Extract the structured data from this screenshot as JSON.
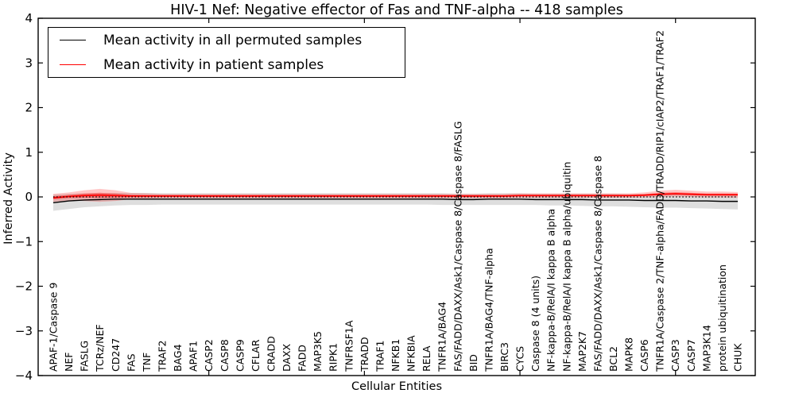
{
  "figure": {
    "title": "HIV-1 Nef: Negative effector of Fas and TNF-alpha -- 418 samples",
    "background_color": "#ffffff"
  },
  "legend": {
    "items": [
      {
        "label": "Mean activity in all permuted samples",
        "color": "#000000"
      },
      {
        "label": "Mean activity in patient samples",
        "color": "#ff0000"
      }
    ]
  },
  "axes": {
    "xlabel": "Cellular Entities",
    "ylabel": "Inferred Activity",
    "ytick_labels": [
      "4",
      "3",
      "2",
      "1",
      "0",
      "−1",
      "−2",
      "−3",
      "−4"
    ]
  },
  "chart_data": {
    "type": "line",
    "title": "HIV-1 Nef: Negative effector of Fas and TNF-alpha -- 418 samples",
    "xlabel": "Cellular Entities",
    "ylabel": "Inferred Activity",
    "ylim": [
      -4,
      4
    ],
    "yticks": [
      4,
      3,
      2,
      1,
      0,
      -1,
      -2,
      -3,
      -4
    ],
    "xtick_indices": [
      10,
      20,
      30,
      40
    ],
    "grid": false,
    "legend_position": "upper left",
    "zero_line": 0,
    "categories": [
      "APAF-1/Caspase 9",
      "NEF",
      "FASLG",
      "TCRz/NEF",
      "CD247",
      "FAS",
      "TNF",
      "TRAF2",
      "BAG4",
      "APAF1",
      "CASP2",
      "CASP8",
      "CASP9",
      "CFLAR",
      "CRADD",
      "DAXX",
      "FADD",
      "MAP3K5",
      "RIPK1",
      "TNFRSF1A",
      "TRADD",
      "TRAF1",
      "NFKB1",
      "NFKBIA",
      "RELA",
      "TNFR1A/BAG4",
      "FAS/FADD/DAXX/Ask1/Caspase 8/Caspase 8/FASLG",
      "BID",
      "TNFR1A/BAG4/TNF-alpha",
      "BIRC3",
      "CYCS",
      "Caspase 8 (4 units)",
      "NF-kappa-B/RelA/I kappa B alpha",
      "NF-kappa-B/RelA/I kappa B alpha/ubiquitin",
      "MAP2K7",
      "FAS/FADD/DAXX/Ask1/Caspase 8/Caspase 8",
      "BCL2",
      "MAPK8",
      "CASP6",
      "TNFR1A/Caspase 2/TNF-alpha/FADD/TRADD/RIP1/cIAP2/TRAF1/TRAF2",
      "CASP3",
      "CASP7",
      "MAP3K14",
      "protein ubiquitination",
      "CHUK"
    ],
    "series": [
      {
        "name": "Mean activity in all permuted samples",
        "color": "#000000",
        "band_color": "#000000",
        "band_opacity": 0.13,
        "values": [
          -0.13,
          -0.09,
          -0.07,
          -0.06,
          -0.05,
          -0.05,
          -0.05,
          -0.05,
          -0.05,
          -0.05,
          -0.05,
          -0.05,
          -0.05,
          -0.05,
          -0.05,
          -0.05,
          -0.05,
          -0.05,
          -0.05,
          -0.05,
          -0.05,
          -0.05,
          -0.05,
          -0.05,
          -0.05,
          -0.05,
          -0.06,
          -0.06,
          -0.05,
          -0.05,
          -0.05,
          -0.06,
          -0.06,
          -0.06,
          -0.06,
          -0.07,
          -0.07,
          -0.07,
          -0.08,
          -0.08,
          -0.08,
          -0.09,
          -0.09,
          -0.1,
          -0.1
        ],
        "band_lower": [
          -0.31,
          -0.27,
          -0.23,
          -0.21,
          -0.19,
          -0.18,
          -0.18,
          -0.17,
          -0.17,
          -0.17,
          -0.17,
          -0.17,
          -0.17,
          -0.17,
          -0.17,
          -0.17,
          -0.17,
          -0.17,
          -0.17,
          -0.17,
          -0.17,
          -0.17,
          -0.17,
          -0.17,
          -0.17,
          -0.18,
          -0.18,
          -0.18,
          -0.18,
          -0.18,
          -0.18,
          -0.18,
          -0.19,
          -0.19,
          -0.2,
          -0.21,
          -0.21,
          -0.22,
          -0.23,
          -0.24,
          -0.24,
          -0.25,
          -0.26,
          -0.27,
          -0.28
        ],
        "band_upper": [
          0.05,
          0.07,
          0.08,
          0.08,
          0.09,
          0.09,
          0.09,
          0.08,
          0.08,
          0.08,
          0.08,
          0.08,
          0.08,
          0.08,
          0.08,
          0.08,
          0.08,
          0.08,
          0.08,
          0.08,
          0.08,
          0.08,
          0.08,
          0.08,
          0.08,
          0.08,
          0.07,
          0.07,
          0.08,
          0.08,
          0.08,
          0.07,
          0.07,
          0.07,
          0.07,
          0.07,
          0.07,
          0.06,
          0.06,
          0.06,
          0.06,
          0.06,
          0.05,
          0.05,
          0.04
        ]
      },
      {
        "name": "Mean activity in patient samples",
        "color": "#ff0000",
        "band_color": "#ff0000",
        "band_opacity": 0.22,
        "inner_band_opacity": 0.38,
        "values": [
          -0.02,
          0.01,
          0.03,
          0.04,
          0.03,
          0.02,
          0.02,
          0.02,
          0.02,
          0.02,
          0.02,
          0.02,
          0.02,
          0.02,
          0.02,
          0.02,
          0.02,
          0.02,
          0.02,
          0.02,
          0.02,
          0.02,
          0.02,
          0.02,
          0.02,
          0.02,
          0.02,
          0.02,
          0.02,
          0.02,
          0.03,
          0.03,
          0.03,
          0.03,
          0.03,
          0.03,
          0.03,
          0.03,
          0.04,
          0.06,
          0.07,
          0.06,
          0.05,
          0.05,
          0.05
        ],
        "band_lower": [
          -0.11,
          -0.08,
          -0.09,
          -0.11,
          -0.09,
          -0.05,
          -0.04,
          -0.03,
          -0.03,
          -0.03,
          -0.03,
          -0.03,
          -0.03,
          -0.03,
          -0.03,
          -0.03,
          -0.03,
          -0.03,
          -0.03,
          -0.03,
          -0.03,
          -0.03,
          -0.03,
          -0.03,
          -0.03,
          -0.03,
          -0.03,
          -0.03,
          -0.03,
          -0.03,
          -0.02,
          -0.02,
          -0.02,
          -0.02,
          -0.02,
          -0.02,
          -0.02,
          -0.02,
          -0.01,
          0.0,
          0.01,
          0.0,
          -0.01,
          -0.01,
          -0.02
        ],
        "band_upper": [
          0.07,
          0.1,
          0.15,
          0.18,
          0.15,
          0.09,
          0.08,
          0.07,
          0.07,
          0.07,
          0.07,
          0.07,
          0.07,
          0.07,
          0.07,
          0.07,
          0.07,
          0.07,
          0.07,
          0.07,
          0.07,
          0.07,
          0.07,
          0.07,
          0.07,
          0.07,
          0.07,
          0.07,
          0.07,
          0.07,
          0.08,
          0.08,
          0.08,
          0.08,
          0.08,
          0.08,
          0.08,
          0.08,
          0.1,
          0.14,
          0.16,
          0.14,
          0.12,
          0.12,
          0.11
        ]
      }
    ]
  }
}
